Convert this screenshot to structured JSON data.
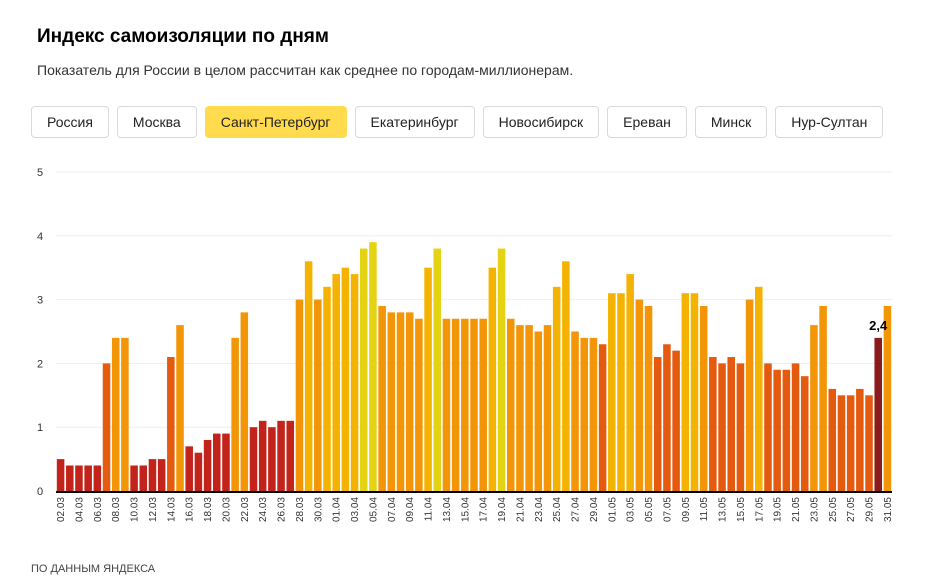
{
  "header": {
    "title": "Индекс самоизоляции по дням",
    "subtitle": "Показатель для России в целом рассчитан как среднее по городам-миллионерам."
  },
  "tabs": [
    {
      "label": "Россия",
      "active": false
    },
    {
      "label": "Москва",
      "active": false
    },
    {
      "label": "Санкт-Петербург",
      "active": true
    },
    {
      "label": "Екатеринбург",
      "active": false
    },
    {
      "label": "Новосибирск",
      "active": false
    },
    {
      "label": "Ереван",
      "active": false
    },
    {
      "label": "Минск",
      "active": false
    },
    {
      "label": "Нур-Султан",
      "active": false
    }
  ],
  "footer": "ПО ДАННЫМ ЯНДЕКСА",
  "colors": {
    "c1": "#c2241b",
    "c2": "#e45a0f",
    "c3": "#f29608",
    "c4": "#f5b301",
    "c5": "#e3d313",
    "highlight": "#8b1a1a",
    "axis": "#000000",
    "grid": "#eeeeee",
    "tab_active": "#ffdb4d"
  },
  "chart_data": {
    "type": "bar",
    "title": "Индекс самоизоляции по дням",
    "xlabel": "",
    "ylabel": "",
    "ylim": [
      0,
      5
    ],
    "yticks": [
      "0",
      "1",
      "2",
      "3",
      "4",
      "5"
    ],
    "categories": [
      "02.03",
      "03.03",
      "04.03",
      "05.03",
      "06.03",
      "07.03",
      "08.03",
      "09.03",
      "10.03",
      "11.03",
      "12.03",
      "13.03",
      "14.03",
      "15.03",
      "16.03",
      "17.03",
      "18.03",
      "19.03",
      "20.03",
      "21.03",
      "22.03",
      "23.03",
      "24.03",
      "25.03",
      "26.03",
      "27.03",
      "28.03",
      "29.03",
      "30.03",
      "31.03",
      "01.04",
      "02.04",
      "03.04",
      "04.04",
      "05.04",
      "06.04",
      "07.04",
      "08.04",
      "09.04",
      "10.04",
      "11.04",
      "12.04",
      "13.04",
      "14.04",
      "15.04",
      "16.04",
      "17.04",
      "18.04",
      "19.04",
      "20.04",
      "21.04",
      "22.04",
      "23.04",
      "24.04",
      "25.04",
      "26.04",
      "27.04",
      "28.04",
      "29.04",
      "30.04",
      "01.05",
      "02.05",
      "03.05",
      "04.05",
      "05.05",
      "06.05",
      "07.05",
      "08.05",
      "09.05",
      "10.05",
      "11.05",
      "12.05",
      "13.05",
      "14.05",
      "15.05",
      "16.05",
      "17.05",
      "18.05",
      "19.05",
      "20.05",
      "21.05",
      "22.05",
      "23.05",
      "24.05",
      "25.05",
      "26.05",
      "27.05",
      "28.05",
      "29.05",
      "30.05",
      "31.05"
    ],
    "x_tick_labels": [
      "02.03",
      "04.03",
      "06.03",
      "08.03",
      "10.03",
      "12.03",
      "14.03",
      "16.03",
      "18.03",
      "20.03",
      "22.03",
      "24.03",
      "26.03",
      "28.03",
      "30.03",
      "01.04",
      "03.04",
      "05.04",
      "07.04",
      "09.04",
      "11.04",
      "13.04",
      "15.04",
      "17.04",
      "19.04",
      "21.04",
      "23.04",
      "25.04",
      "27.04",
      "29.04",
      "01.05",
      "03.05",
      "05.05",
      "07.05",
      "09.05",
      "11.05",
      "13.05",
      "15.05",
      "17.05",
      "19.05",
      "21.05",
      "23.05",
      "25.05",
      "27.05",
      "29.05",
      "31.05"
    ],
    "values": [
      0.5,
      0.4,
      0.4,
      0.4,
      0.4,
      2.0,
      2.4,
      2.4,
      0.4,
      0.4,
      0.5,
      0.5,
      2.1,
      2.6,
      0.7,
      0.6,
      0.8,
      0.9,
      0.9,
      2.4,
      2.8,
      1.0,
      1.1,
      1.0,
      1.1,
      1.1,
      3.0,
      3.6,
      3.0,
      3.2,
      3.4,
      3.5,
      3.4,
      3.8,
      3.9,
      2.9,
      2.8,
      2.8,
      2.8,
      2.7,
      3.5,
      3.8,
      2.7,
      2.7,
      2.7,
      2.7,
      2.7,
      3.5,
      3.8,
      2.7,
      2.6,
      2.6,
      2.5,
      2.6,
      3.2,
      3.6,
      2.5,
      2.4,
      2.4,
      2.3,
      3.1,
      3.1,
      3.4,
      3.0,
      2.9,
      2.1,
      2.3,
      2.2,
      3.1,
      3.1,
      2.9,
      2.1,
      2.0,
      2.1,
      2.0,
      3.0,
      3.2,
      2.0,
      1.9,
      1.9,
      2.0,
      1.8,
      2.6,
      2.9,
      1.6,
      1.5,
      1.5,
      1.6,
      1.5,
      2.4,
      2.9
    ],
    "highlight": {
      "category": "30.05",
      "value": 2.4,
      "label": "2,4"
    }
  }
}
